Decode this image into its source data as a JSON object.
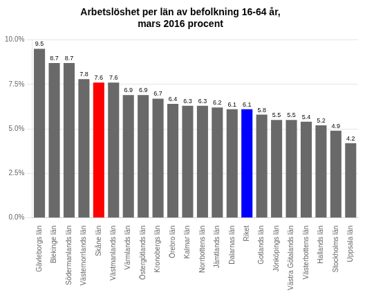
{
  "chart_data": {
    "type": "bar",
    "title": "Arbetslöshet per län av befolkning 16-64 år,\nmars 2016 procent",
    "categories": [
      "Gävleborgs län",
      "Blekinge län",
      "Södermanlands län",
      "Västernorrlands län",
      "Skåne län",
      "Västmanlands län",
      "Värmlands län",
      "Östergötlands län",
      "Kronobergs län",
      "Örebro län",
      "Kalmar län",
      "Norrbottens län",
      "Jämtlands län",
      "Dalarnas län",
      "Riket",
      "Gotlands län",
      "Jönköpings län",
      "Västra Götalands län",
      "Västerbottens län",
      "Hallands län",
      "Stockholms län",
      "Uppsala län"
    ],
    "values": [
      9.5,
      8.7,
      8.7,
      7.8,
      7.6,
      7.6,
      6.9,
      6.9,
      6.7,
      6.4,
      6.3,
      6.3,
      6.2,
      6.1,
      6.1,
      5.8,
      5.5,
      5.5,
      5.4,
      5.2,
      4.9,
      4.2
    ],
    "colors": [
      "#696969",
      "#696969",
      "#696969",
      "#696969",
      "#ff0000",
      "#696969",
      "#696969",
      "#696969",
      "#696969",
      "#696969",
      "#696969",
      "#696969",
      "#696969",
      "#696969",
      "#0000ff",
      "#696969",
      "#696969",
      "#696969",
      "#696969",
      "#696969",
      "#696969",
      "#696969"
    ],
    "ylim": [
      0,
      10.0
    ],
    "yticks": [
      {
        "value": 0.0,
        "label": "0.0%"
      },
      {
        "value": 2.5,
        "label": "2.5%"
      },
      {
        "value": 5.0,
        "label": "5.0%"
      },
      {
        "value": 7.5,
        "label": "7.5%"
      },
      {
        "value": 10.0,
        "label": "10.0%"
      }
    ],
    "grid": true,
    "data_labels": true
  }
}
